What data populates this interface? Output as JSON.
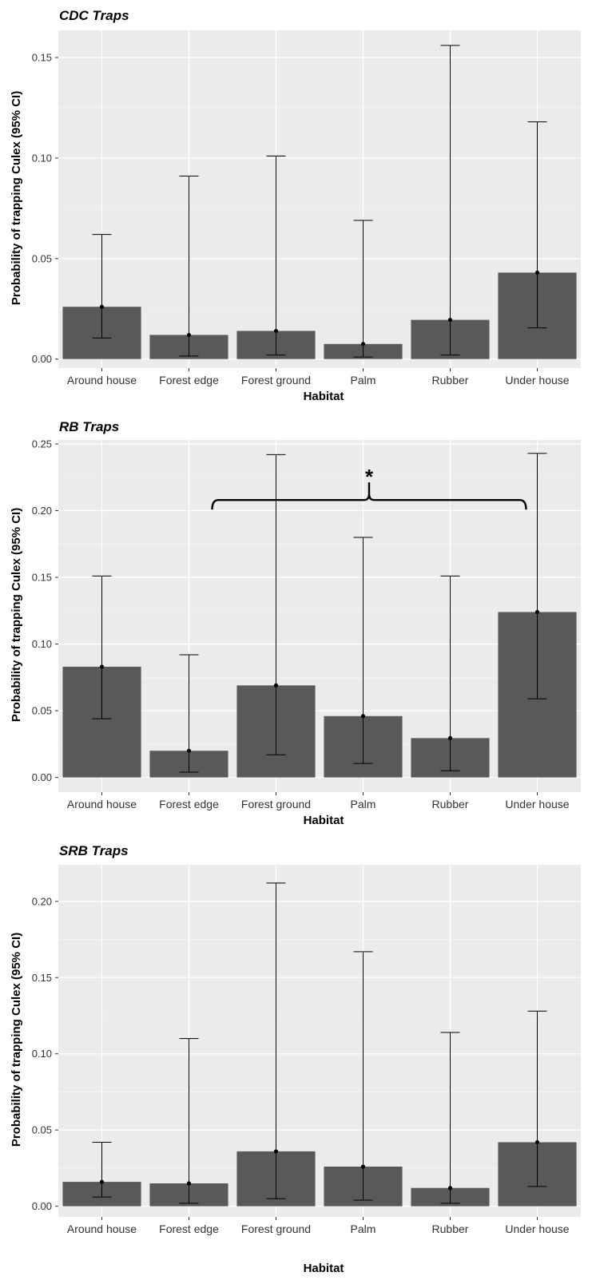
{
  "chart_data": [
    {
      "type": "bar",
      "title": "CDC Traps",
      "xlabel": "Habitat",
      "ylabel": "Probability of trapping Culex (95% CI)",
      "categories": [
        "Around house",
        "Forest edge",
        "Forest ground",
        "Palm",
        "Rubber",
        "Under house"
      ],
      "values": [
        0.026,
        0.012,
        0.014,
        0.0075,
        0.0195,
        0.043
      ],
      "ci_lower": [
        0.0105,
        0.0015,
        0.002,
        0.001,
        0.002,
        0.0155
      ],
      "ci_upper": [
        0.062,
        0.091,
        0.101,
        0.069,
        0.156,
        0.118
      ],
      "ylim": [
        -0.0045,
        0.1635
      ],
      "yticks": [
        0,
        0.05,
        0.1,
        0.15
      ],
      "ytick_labels": [
        "0.00",
        "0.05",
        "0.10",
        "0.15"
      ],
      "grid": true,
      "bar_color": "#595959",
      "panel_color": "#ebebeb"
    },
    {
      "type": "bar",
      "title": "RB Traps",
      "xlabel": "Habitat",
      "ylabel": "Probability of trapping Culex (95% CI)",
      "categories": [
        "Around house",
        "Forest edge",
        "Forest ground",
        "Palm",
        "Rubber",
        "Under house"
      ],
      "values": [
        0.083,
        0.02,
        0.069,
        0.046,
        0.0295,
        0.124
      ],
      "ci_lower": [
        0.044,
        0.004,
        0.017,
        0.0105,
        0.005,
        0.059
      ],
      "ci_upper": [
        0.151,
        0.092,
        0.242,
        0.18,
        0.151,
        0.243
      ],
      "ylim": [
        -0.011,
        0.253
      ],
      "yticks": [
        0,
        0.05,
        0.1,
        0.15,
        0.2,
        0.25
      ],
      "ytick_labels": [
        "0.00",
        "0.05",
        "0.10",
        "0.15",
        "0.20",
        "0.25"
      ],
      "grid": true,
      "annotation": {
        "text": "*",
        "from": "Forest edge",
        "to": "Under house",
        "y": 0.208
      },
      "bar_color": "#595959",
      "panel_color": "#ebebeb"
    },
    {
      "type": "bar",
      "title": "SRB Traps",
      "xlabel": "Habitat",
      "ylabel": "Probability of trapping Culex (95% CI)",
      "categories": [
        "Around house",
        "Forest edge",
        "Forest ground",
        "Palm",
        "Rubber",
        "Under house"
      ],
      "values": [
        0.016,
        0.015,
        0.036,
        0.026,
        0.012,
        0.042
      ],
      "ci_lower": [
        0.006,
        0.002,
        0.005,
        0.004,
        0.002,
        0.013
      ],
      "ci_upper": [
        0.042,
        0.11,
        0.212,
        0.167,
        0.114,
        0.128
      ],
      "ylim": [
        -0.007,
        0.224
      ],
      "yticks": [
        0,
        0.05,
        0.1,
        0.15,
        0.2
      ],
      "ytick_labels": [
        "0.00",
        "0.05",
        "0.10",
        "0.15",
        "0.20"
      ],
      "grid": true,
      "bar_color": "#595959",
      "panel_color": "#ebebeb"
    }
  ]
}
